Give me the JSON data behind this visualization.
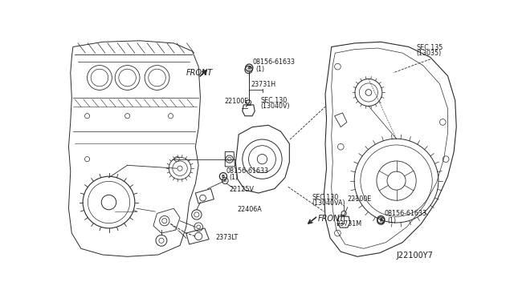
{
  "bg_color": "#ffffff",
  "fig_width": 6.4,
  "fig_height": 3.72,
  "dpi": 100,
  "line_color": "#2a2a2a",
  "text_color": "#1a1a1a",
  "part_number": "J22100Y7",
  "labels": {
    "bolt_sym": "B",
    "l08156_top": "08156-61633",
    "l08156_top2": "(1)",
    "l23731H": "23731H",
    "l22100E_top": "22100E",
    "lSEC130V": "SEC.130",
    "lSEC130V2": "(13040V)",
    "lSEC135": "SEC.135",
    "lSEC135_2": "(13035)",
    "l08156_mid": "08156-61633",
    "l08156_mid2": "(1)",
    "l22125V": "22125V",
    "l22406A": "22406A",
    "l2373LT": "2373LT",
    "lSEC130VA": "SEC.130",
    "lSEC130VA2": "(13040VA)",
    "l22100E_bot": "22100E",
    "l23731M": "23731M",
    "l08156_bot": "08156-61633",
    "l08156_bot2": "(1)",
    "lFRONT_top": "FRONT",
    "lFRONT_bot": "FRONT"
  },
  "fs_label": 5.8,
  "fs_front": 7.0,
  "fs_part": 7.0
}
